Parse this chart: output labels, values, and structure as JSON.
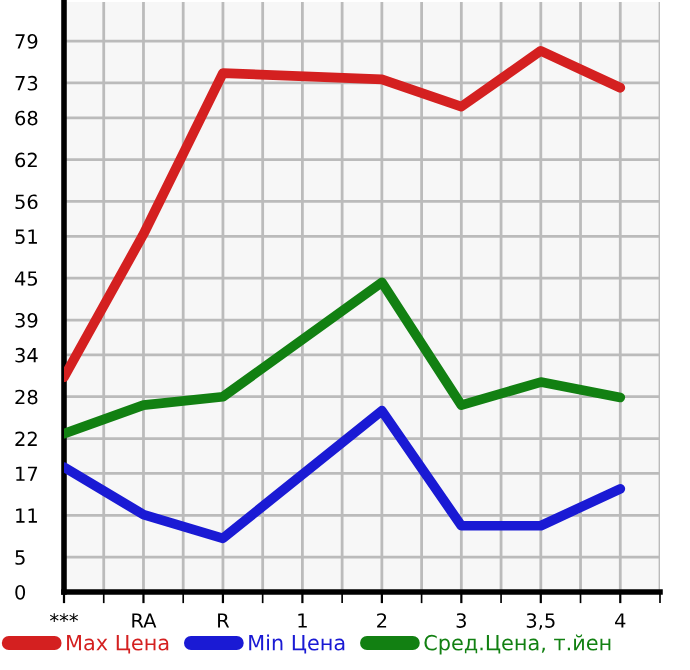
{
  "chart_data": {
    "type": "line",
    "categories": [
      "***",
      "RA",
      "R",
      "1",
      "2",
      "3",
      "3,5",
      "4"
    ],
    "series": [
      {
        "name": "Max Цена",
        "color": "#d42020",
        "values": [
          30.8,
          51.3,
          74.4,
          null,
          73.5,
          69.6,
          77.6,
          72.3
        ]
      },
      {
        "name": "Min Цена",
        "color": "#1a1ad4",
        "values": [
          17.9,
          11.1,
          7.7,
          null,
          26.0,
          9.5,
          9.5,
          14.8
        ]
      },
      {
        "name": "Сред.Цена, т.йен",
        "color": "#128012",
        "values": [
          22.7,
          26.8,
          28.0,
          null,
          44.4,
          26.8,
          30.1,
          27.9
        ]
      }
    ],
    "ylim": [
      0,
      84.6
    ],
    "yticks": [
      0,
      5,
      11,
      17,
      22,
      28,
      34,
      39,
      45,
      51,
      56,
      62,
      68,
      73,
      79
    ],
    "grid": true,
    "legend": "bottom",
    "marker": "none",
    "line_style": "solid"
  }
}
